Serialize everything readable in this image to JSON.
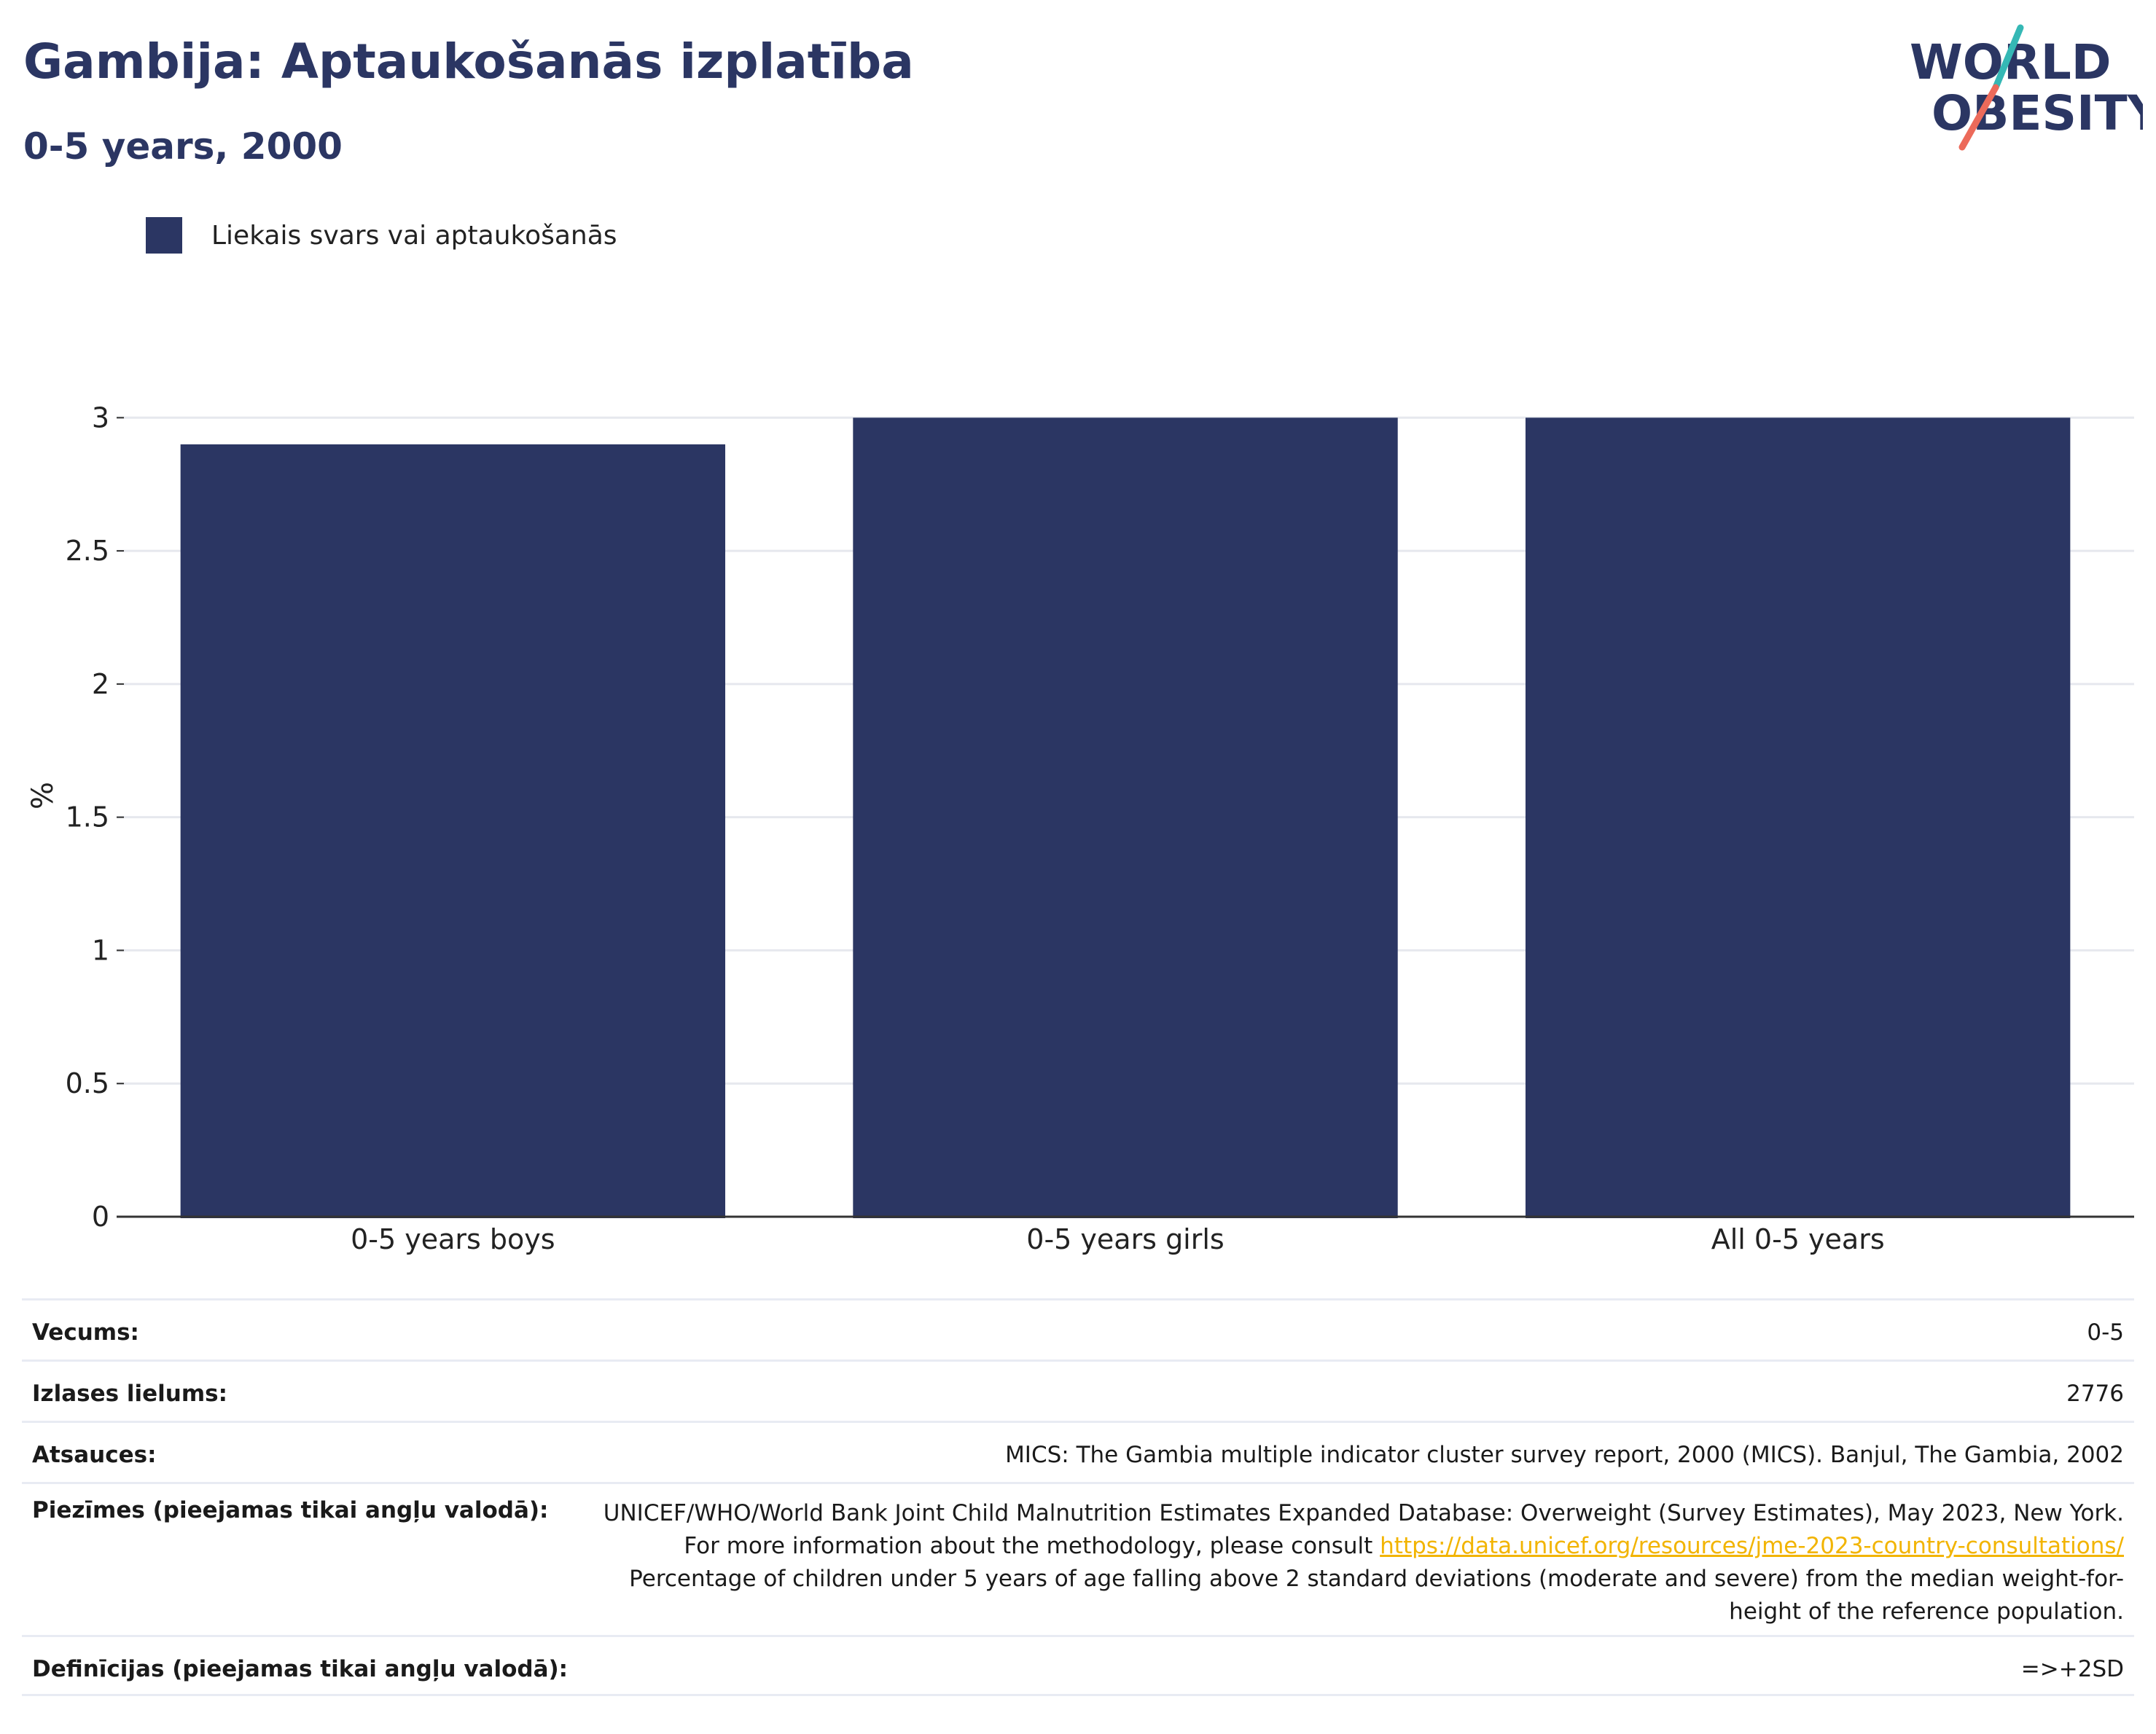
{
  "header": {
    "title": "Gambija: Aptaukošanās izplatība",
    "subtitle": "0-5 years, 2000"
  },
  "logo": {
    "line1": "WORLD",
    "line2": "OBESITY",
    "icon": "world-obesity-logo"
  },
  "legend": {
    "label": "Liekais svars vai aptaukošanās",
    "color": "#2b3663"
  },
  "chart_data": {
    "type": "bar",
    "title": "Gambija: Aptaukošanās izplatība",
    "subtitle": "0-5 years, 2000",
    "categories": [
      "0-5 years boys",
      "0-5 years girls",
      "All 0-5 years"
    ],
    "series": [
      {
        "name": "Liekais svars vai aptaukošanās",
        "values": [
          2.9,
          3.0,
          3.0
        ],
        "color": "#2b3663"
      }
    ],
    "ylabel": "%",
    "xlabel": "",
    "ylim": [
      0,
      3
    ],
    "yticks": [
      "0",
      "0.5",
      "1",
      "1.5",
      "2",
      "2.5",
      "3"
    ],
    "grid": true,
    "legend_position": "top-left"
  },
  "info": {
    "rows": [
      {
        "key": "Vecums:",
        "value": "0-5"
      },
      {
        "key": "Izlases lielums:",
        "value": "2776"
      },
      {
        "key": "Atsauces:",
        "value": "MICS: The Gambia multiple indicator cluster survey report, 2000 (MICS). Banjul, The Gambia, 2002"
      },
      {
        "key": "Piezīmes (pieejamas tikai angļu valodā):",
        "value_pre": "UNICEF/WHO/World Bank Joint Child Malnutrition Estimates Expanded Database: Overweight (Survey Estimates), May 2023, New York. For more information about the methodology, please consult ",
        "link": "https://data.unicef.org/resources/jme-2023-country-consultations/",
        "value_post": " Percentage of children under 5 years of age falling above 2 standard deviations (moderate and severe) from the median weight-for-height of the reference population."
      },
      {
        "key": "Definīcijas (pieejamas tikai angļu valodā):",
        "value": "=>+2SD"
      }
    ]
  }
}
